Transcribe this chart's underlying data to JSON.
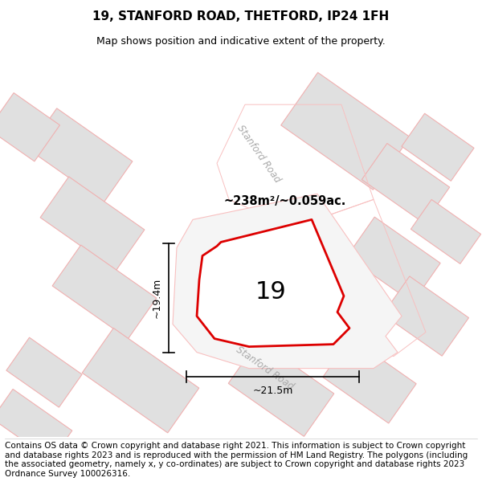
{
  "title": "19, STANFORD ROAD, THETFORD, IP24 1FH",
  "subtitle": "Map shows position and indicative extent of the property.",
  "footer": "Contains OS data © Crown copyright and database right 2021. This information is subject to Crown copyright and database rights 2023 and is reproduced with the permission of HM Land Registry. The polygons (including the associated geometry, namely x, y co-ordinates) are subject to Crown copyright and database rights 2023 Ordnance Survey 100026316.",
  "area_label": "~238m²/~0.059ac.",
  "property_number": "19",
  "dim_height": "~19.4m",
  "dim_width": "~21.5m",
  "road_label_upper": "Stanford Road",
  "road_label_lower": "Stanford Road",
  "red_color": "#dd0000",
  "building_fill": "#e0e0e0",
  "building_edge": "#f0b0b0",
  "plot_edge": "#f8c0c0",
  "map_bg": "#ffffff",
  "title_fontsize": 11,
  "subtitle_fontsize": 9,
  "footer_fontsize": 7.5,
  "road_text_color": "#aaaaaa"
}
